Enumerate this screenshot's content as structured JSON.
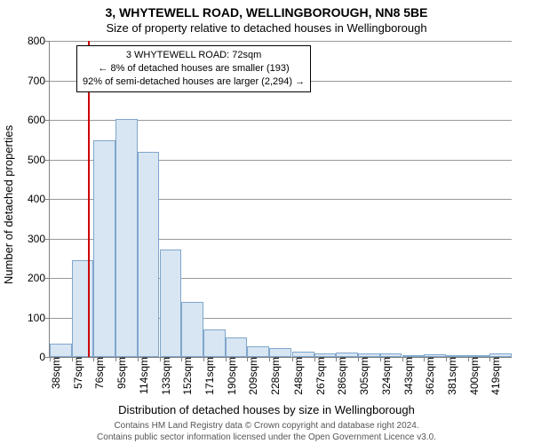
{
  "title": "3, WHYTEWELL ROAD, WELLINGBOROUGH, NN8 5BE",
  "subtitle": "Size of property relative to detached houses in Wellingborough",
  "ylabel": "Number of detached properties",
  "xlabel": "Distribution of detached houses by size in Wellingborough",
  "footer_line1": "Contains HM Land Registry data © Crown copyright and database right 2024.",
  "footer_line2": "Contains public sector information licensed under the Open Government Licence v3.0.",
  "info_box": {
    "line1": "3 WHYTEWELL ROAD: 72sqm",
    "line2": "← 8% of detached houses are smaller (193)",
    "line3": "92% of semi-detached houses are larger (2,294) →"
  },
  "chart": {
    "type": "histogram-bar",
    "background_color": "#ffffff",
    "grid_color": "#808080",
    "bar_fill": "#d8e6f3",
    "bar_stroke": "#7fa6cc",
    "reference_line_color": "#cc0000",
    "reference_line_x": 72,
    "ylim": [
      0,
      800
    ],
    "ytick_step": 100,
    "bar_width_units": 19,
    "categories": [
      "38sqm",
      "57sqm",
      "76sqm",
      "95sqm",
      "114sqm",
      "133sqm",
      "152sqm",
      "171sqm",
      "190sqm",
      "209sqm",
      "228sqm",
      "248sqm",
      "267sqm",
      "286sqm",
      "305sqm",
      "324sqm",
      "343sqm",
      "362sqm",
      "381sqm",
      "400sqm",
      "419sqm"
    ],
    "x_starts": [
      38,
      57,
      76,
      95,
      114,
      133,
      152,
      171,
      190,
      209,
      228,
      248,
      267,
      286,
      305,
      324,
      343,
      362,
      381,
      400,
      419
    ],
    "values": [
      33,
      245,
      548,
      602,
      520,
      272,
      140,
      70,
      50,
      28,
      22,
      14,
      10,
      12,
      8,
      8,
      0,
      6,
      0,
      0,
      8
    ],
    "title_fontsize": 14,
    "subtitle_fontsize": 13,
    "axis_label_fontsize": 13,
    "tick_fontsize": 12,
    "footer_fontsize": 10
  }
}
